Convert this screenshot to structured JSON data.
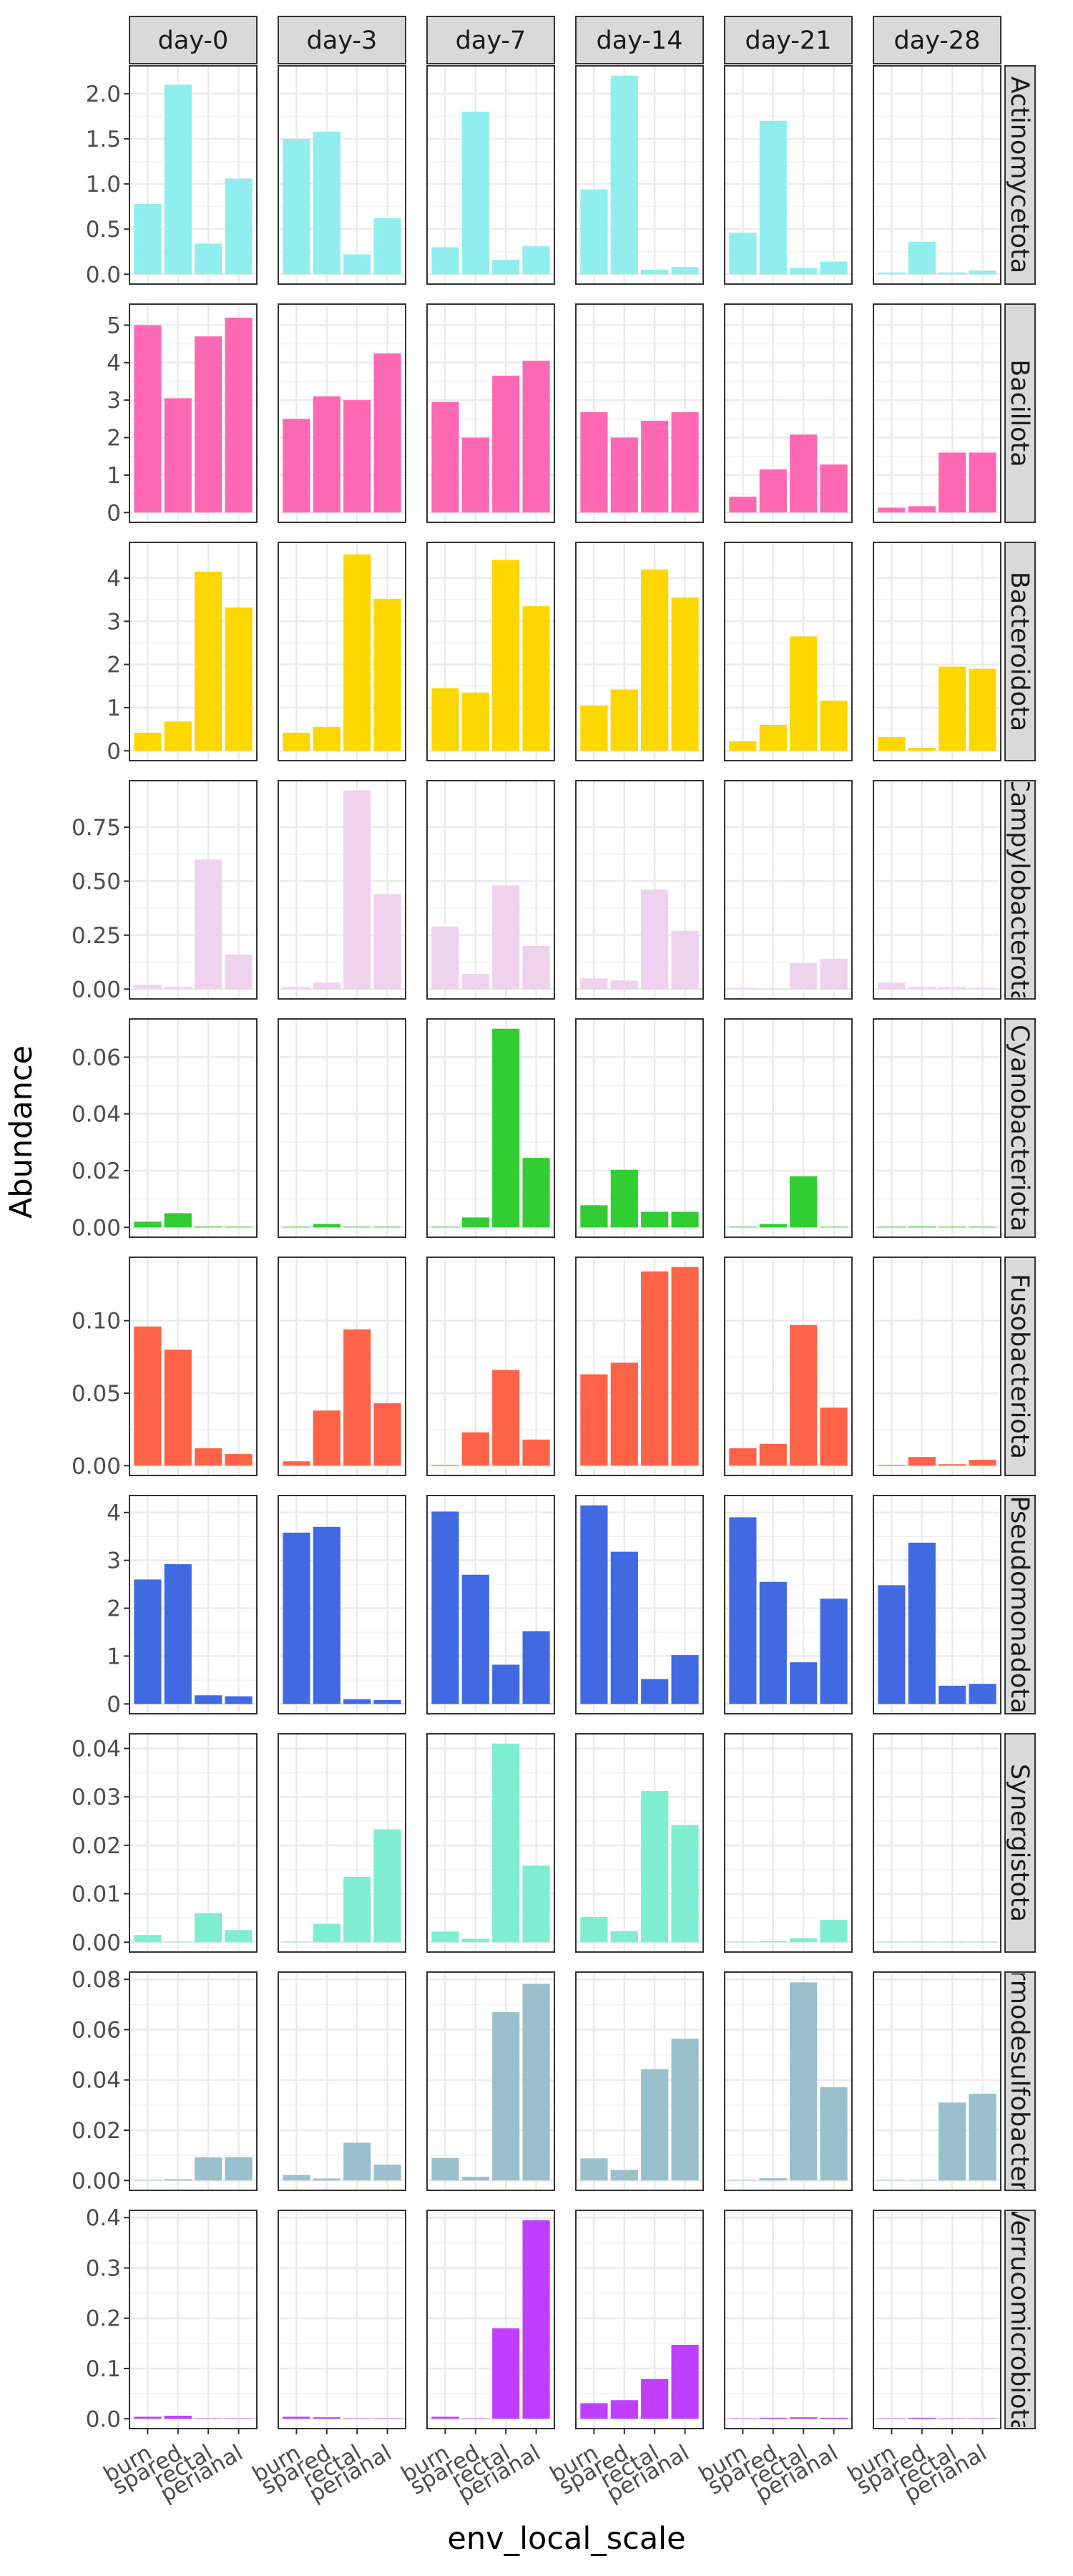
{
  "chart_data": {
    "type": "bar",
    "facet_columns": [
      "day-0",
      "day-3",
      "day-7",
      "day-14",
      "day-21",
      "day-28"
    ],
    "categories": [
      "burn",
      "spared",
      "rectal",
      "perianal"
    ],
    "xlabel": "env_local_scale",
    "ylabel": "Abundance",
    "grid": true,
    "scales": "free_y",
    "rows": [
      {
        "name": "Actinomycetota",
        "color": "#90eeee",
        "ylim": [
          0,
          2.2
        ],
        "ticks": [
          "0.0",
          "0.5",
          "1.0",
          "1.5",
          "2.0"
        ],
        "values": [
          [
            0.78,
            2.1,
            0.34,
            1.06
          ],
          [
            1.5,
            1.58,
            0.22,
            0.62
          ],
          [
            0.3,
            1.8,
            0.16,
            0.31
          ],
          [
            0.94,
            2.2,
            0.05,
            0.08
          ],
          [
            0.46,
            1.7,
            0.07,
            0.14
          ],
          [
            0.02,
            0.36,
            0.02,
            0.04
          ]
        ]
      },
      {
        "name": "Bacillota",
        "color": "#ff69b4",
        "ylim": [
          0,
          5.3
        ],
        "ticks": [
          "0",
          "1",
          "2",
          "3",
          "4",
          "5"
        ],
        "values": [
          [
            5.0,
            3.05,
            4.7,
            5.2
          ],
          [
            2.5,
            3.1,
            3.0,
            4.25
          ],
          [
            2.95,
            2.0,
            3.65,
            4.05
          ],
          [
            2.68,
            2.0,
            2.45,
            2.68
          ],
          [
            0.42,
            1.15,
            2.08,
            1.28
          ],
          [
            0.13,
            0.17,
            1.6,
            1.6
          ]
        ]
      },
      {
        "name": "Bacteroidota",
        "color": "#ffd700",
        "ylim": [
          0,
          4.6
        ],
        "ticks": [
          "0",
          "1",
          "2",
          "3",
          "4"
        ],
        "values": [
          [
            0.42,
            0.68,
            4.15,
            3.32
          ],
          [
            0.42,
            0.55,
            4.55,
            3.52
          ],
          [
            1.45,
            1.35,
            4.42,
            3.35
          ],
          [
            1.05,
            1.42,
            4.2,
            3.55
          ],
          [
            0.22,
            0.6,
            2.65,
            1.16
          ],
          [
            0.32,
            0.07,
            1.95,
            1.9
          ]
        ]
      },
      {
        "name": "Campylobacterota",
        "color": "#eed2ee",
        "ylim": [
          0,
          0.92
        ],
        "ticks": [
          "0.00",
          "0.25",
          "0.50",
          "0.75"
        ],
        "values": [
          [
            0.02,
            0.01,
            0.6,
            0.16
          ],
          [
            0.01,
            0.03,
            0.92,
            0.44
          ],
          [
            0.29,
            0.07,
            0.48,
            0.2
          ],
          [
            0.05,
            0.04,
            0.46,
            0.27
          ],
          [
            0.005,
            0.002,
            0.12,
            0.14
          ],
          [
            0.03,
            0.01,
            0.01,
            0.005
          ]
        ]
      },
      {
        "name": "Cyanobacteriota",
        "color": "#32cd32",
        "ylim": [
          0,
          0.07
        ],
        "ticks": [
          "0.00",
          "0.02",
          "0.04",
          "0.06"
        ],
        "values": [
          [
            0.002,
            0.005,
            0.0003,
            0.0002
          ],
          [
            0.0002,
            0.0012,
            0.0002,
            0.0002
          ],
          [
            0.0002,
            0.0035,
            0.07,
            0.0245
          ],
          [
            0.0078,
            0.0203,
            0.0055,
            0.0055
          ],
          [
            0.0002,
            0.0012,
            0.018,
            0.0002
          ],
          [
            0.0002,
            0.0003,
            0.0002,
            0.0002
          ]
        ]
      },
      {
        "name": "Fusobacteriota",
        "color": "#ff6347",
        "ylim": [
          0,
          0.137
        ],
        "ticks": [
          "0.00",
          "0.05",
          "0.10"
        ],
        "values": [
          [
            0.096,
            0.08,
            0.012,
            0.008
          ],
          [
            0.003,
            0.038,
            0.094,
            0.043
          ],
          [
            0.0005,
            0.023,
            0.066,
            0.018
          ],
          [
            0.063,
            0.071,
            0.134,
            0.137
          ],
          [
            0.012,
            0.015,
            0.097,
            0.04
          ],
          [
            0.0005,
            0.006,
            0.001,
            0.004
          ]
        ]
      },
      {
        "name": "Pseudomonadota",
        "color": "#4169e1",
        "ylim": [
          0,
          4.15
        ],
        "ticks": [
          "0",
          "1",
          "2",
          "3",
          "4"
        ],
        "values": [
          [
            2.6,
            2.92,
            0.18,
            0.16
          ],
          [
            3.58,
            3.7,
            0.1,
            0.08
          ],
          [
            4.02,
            2.7,
            0.82,
            1.52
          ],
          [
            4.15,
            3.18,
            0.52,
            1.02
          ],
          [
            3.9,
            2.55,
            0.87,
            2.2
          ],
          [
            2.48,
            3.37,
            0.38,
            0.42
          ]
        ]
      },
      {
        "name": "Synergistota",
        "color": "#7feed0",
        "ylim": [
          0,
          0.041
        ],
        "ticks": [
          "0.00",
          "0.01",
          "0.02",
          "0.03",
          "0.04"
        ],
        "values": [
          [
            0.0015,
            0.0001,
            0.006,
            0.0025
          ],
          [
            0.0001,
            0.0038,
            0.0135,
            0.0233
          ],
          [
            0.0022,
            0.0007,
            0.041,
            0.0158
          ],
          [
            0.0052,
            0.0023,
            0.0312,
            0.0242
          ],
          [
            0.0001,
            0.0002,
            0.0008,
            0.0046
          ],
          [
            0.0001,
            0.0001,
            0.0001,
            0.0001
          ]
        ]
      },
      {
        "name": "Thermodesulfobacteriota",
        "color": "#9ac0cd",
        "ylim": [
          0,
          0.079
        ],
        "ticks": [
          "0.00",
          "0.02",
          "0.04",
          "0.06",
          "0.08"
        ],
        "values": [
          [
            0.0002,
            0.0005,
            0.0092,
            0.0093
          ],
          [
            0.0022,
            0.0008,
            0.015,
            0.0063
          ],
          [
            0.0089,
            0.0015,
            0.067,
            0.0782
          ],
          [
            0.0088,
            0.0042,
            0.0443,
            0.0564
          ],
          [
            0.0002,
            0.0009,
            0.0788,
            0.0371
          ],
          [
            0.0002,
            0.0002,
            0.031,
            0.0345
          ]
        ]
      },
      {
        "name": "Verrucomicrobiota",
        "color": "#bf3eff",
        "ylim": [
          0,
          0.395
        ],
        "ticks": [
          "0.0",
          "0.1",
          "0.2",
          "0.3",
          "0.4"
        ],
        "values": [
          [
            0.004,
            0.006,
            0.0005,
            0.0005
          ],
          [
            0.004,
            0.003,
            0.0005,
            0.0005
          ],
          [
            0.004,
            0.0005,
            0.18,
            0.395
          ],
          [
            0.031,
            0.037,
            0.079,
            0.147
          ],
          [
            0.0005,
            0.002,
            0.003,
            0.002
          ],
          [
            0.0005,
            0.002,
            0.0005,
            0.0005
          ]
        ]
      }
    ]
  }
}
